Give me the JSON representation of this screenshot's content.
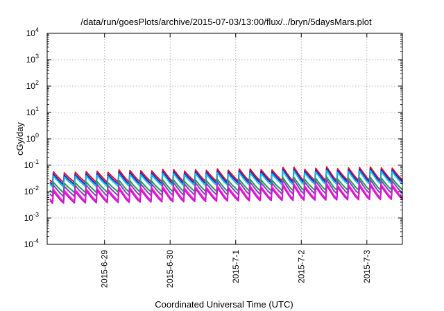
{
  "chart_data": {
    "type": "line",
    "title": "/data/run/goesPlots/archive/2015-07-03/13:00/flux/../bryn/5daysMars.plot",
    "xlabel": "Coordinated Universal Time (UTC)",
    "ylabel": "cGy/day",
    "y_scale": "log",
    "ylim": [
      0.0001,
      10000
    ],
    "xlim": [
      "2015-06-28 03:00",
      "2015-07-03 13:00"
    ],
    "x_ticks": [
      {
        "date": "2015-06-29 00:00",
        "label": "2015-6-29"
      },
      {
        "date": "2015-06-30 00:00",
        "label": "2015-6-30"
      },
      {
        "date": "2015-07-01 00:00",
        "label": "2015-7-1"
      },
      {
        "date": "2015-07-02 00:00",
        "label": "2015-7-2"
      },
      {
        "date": "2015-07-03 00:00",
        "label": "2015-7-3"
      }
    ],
    "y_ticks": [
      {
        "base": "10",
        "exp": "4",
        "value": 10000
      },
      {
        "base": "10",
        "exp": "3",
        "value": 1000
      },
      {
        "base": "10",
        "exp": "2",
        "value": 100
      },
      {
        "base": "10",
        "exp": "1",
        "value": 10
      },
      {
        "base": "10",
        "exp": "0",
        "value": 1
      },
      {
        "base": "10",
        "exp": "-1",
        "value": 0.1
      },
      {
        "base": "10",
        "exp": "-2",
        "value": 0.01
      },
      {
        "base": "10",
        "exp": "-3",
        "value": 0.001
      },
      {
        "base": "10",
        "exp": "-4",
        "value": 0.0001
      }
    ],
    "grid": true,
    "legend": "none",
    "pattern": "sawtooth",
    "cycles_per_day": 6,
    "series": [
      {
        "color": "#e8141e",
        "peak": [
          0.055,
          0.085
        ],
        "trough": [
          0.022,
          0.028
        ]
      },
      {
        "color": "#1a22e0",
        "peak": [
          0.045,
          0.072
        ],
        "trough": [
          0.018,
          0.024
        ]
      },
      {
        "color": "#14c0dc",
        "peak": [
          0.038,
          0.062
        ],
        "trough": [
          0.015,
          0.02
        ]
      },
      {
        "color": "#1ea04a",
        "peak": [
          0.022,
          0.035
        ],
        "trough": [
          0.009,
          0.012
        ]
      },
      {
        "color": "#8a3cc8",
        "peak": [
          0.017,
          0.028
        ],
        "trough": [
          0.0065,
          0.009
        ]
      },
      {
        "color": "#ff14e6",
        "peak": [
          0.012,
          0.02
        ],
        "trough": [
          0.0042,
          0.006
        ]
      },
      {
        "color": "#c81ec8",
        "peak": [
          0.01,
          0.017
        ],
        "trough": [
          0.0036,
          0.0052
        ]
      }
    ]
  }
}
